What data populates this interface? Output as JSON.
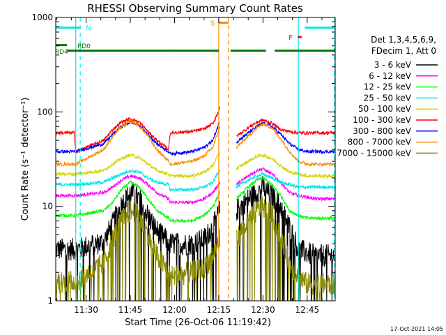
{
  "chart_data": {
    "type": "line",
    "title": "RHESSI Observing Summary Count Rates",
    "xlabel": "Start Time (26-Oct-06 11:19:42)",
    "ylabel": "Count Rate (s⁻¹ detector⁻¹)",
    "y_scale": "log",
    "ylim": [
      1,
      1000
    ],
    "x_unit": "minutes of day (UT)",
    "xlim": [
      679.7,
      774.5
    ],
    "x_ticks": [
      {
        "minute": 690,
        "label": "11:30"
      },
      {
        "minute": 705,
        "label": "11:45"
      },
      {
        "minute": 720,
        "label": "12:00"
      },
      {
        "minute": 735,
        "label": "12:15"
      },
      {
        "minute": 750,
        "label": "12:30"
      },
      {
        "minute": 765,
        "label": "12:45"
      }
    ],
    "y_ticks": [
      {
        "value": 1,
        "label": "1"
      },
      {
        "value": 10,
        "label": "10"
      },
      {
        "value": 100,
        "label": "100"
      },
      {
        "value": 1000,
        "label": "1000"
      }
    ],
    "legend_header": [
      "Det 1,3,4,5,6,9,",
      "FDecim 1, Att 0"
    ],
    "legend_position": "right",
    "series": [
      {
        "name": "3 - 6 keV",
        "color": "#000000",
        "x": [
          679.7,
          686,
          686.5,
          696,
          699,
          702,
          705,
          708,
          711,
          714,
          718,
          718.5,
          726,
          730,
          733,
          735.4,
          741,
          745,
          748,
          750,
          753,
          756,
          759,
          762,
          765,
          768,
          774.5
        ],
        "y": [
          3.5,
          3.5,
          3.5,
          4.2,
          6.5,
          10.5,
          14,
          12,
          8,
          5.5,
          4.2,
          4,
          4,
          4.5,
          6,
          9,
          9,
          12,
          14,
          16,
          13,
          10,
          6,
          3.5,
          3.2,
          3.0,
          3.0
        ]
      },
      {
        "name": "6 - 12 keV",
        "color": "#ff00ff",
        "x": [
          679.7,
          686,
          686.5,
          696,
          699,
          702,
          705,
          708,
          711,
          714,
          718,
          718.5,
          726,
          730,
          733,
          735.4,
          741,
          745,
          748,
          750,
          753,
          756,
          759,
          762,
          765,
          768,
          774.5
        ],
        "y": [
          13,
          13,
          13,
          14,
          16,
          19,
          21,
          20,
          17,
          14,
          12,
          11,
          11,
          12,
          14,
          18,
          17,
          21,
          24,
          25,
          22,
          18,
          14,
          13,
          12.5,
          12,
          12
        ]
      },
      {
        "name": "12 - 25 keV",
        "color": "#00ff00",
        "x": [
          679.7,
          686,
          686.5,
          696,
          699,
          702,
          705,
          708,
          711,
          714,
          718,
          718.5,
          726,
          730,
          733,
          735.4,
          741,
          745,
          748,
          750,
          753,
          756,
          759,
          762,
          765,
          768,
          774.5
        ],
        "y": [
          8,
          8,
          8,
          9,
          11,
          15,
          18,
          16,
          12,
          9,
          7.5,
          7,
          7,
          8,
          10,
          14,
          12,
          16,
          19,
          20,
          17,
          13,
          9,
          8,
          7.5,
          7.5,
          7.5
        ]
      },
      {
        "name": "25 - 50 keV",
        "color": "#00e8e8",
        "x": [
          679.7,
          686,
          686.5,
          696,
          699,
          702,
          705,
          708,
          711,
          714,
          718,
          718.5,
          726,
          730,
          733,
          735.4,
          741,
          745,
          748,
          750,
          753,
          756,
          759,
          762,
          765,
          768,
          774.5
        ],
        "y": [
          17,
          17,
          17,
          18,
          20,
          22,
          24,
          23,
          20,
          18,
          17,
          15,
          15,
          16,
          18,
          25,
          16,
          19,
          21,
          22,
          20,
          18,
          17,
          16,
          16,
          16,
          16
        ]
      },
      {
        "name": "50 - 100 keV",
        "color": "#d4d400",
        "x": [
          679.7,
          686,
          686.5,
          696,
          699,
          702,
          705,
          708,
          711,
          714,
          718,
          718.5,
          726,
          730,
          733,
          735.4,
          741,
          745,
          748,
          750,
          753,
          756,
          759,
          762,
          765,
          768,
          774.5
        ],
        "y": [
          22,
          22,
          22,
          24,
          28,
          32,
          35,
          33,
          28,
          24,
          22,
          21,
          21,
          23,
          27,
          38,
          25,
          30,
          34,
          35,
          32,
          27,
          23,
          22,
          21,
          21,
          21
        ]
      },
      {
        "name": "100 - 300 keV",
        "color": "#ff0000",
        "x": [
          679.7,
          686,
          686.5,
          696,
          699,
          702,
          705,
          708,
          711,
          714,
          718,
          718.5,
          726,
          730,
          733,
          735.4,
          741,
          745,
          748,
          750,
          753,
          756,
          759,
          762,
          765,
          768,
          774.5
        ],
        "y": [
          60,
          60,
          38,
          50,
          65,
          78,
          85,
          78,
          62,
          50,
          40,
          60,
          62,
          66,
          75,
          110,
          55,
          68,
          78,
          82,
          76,
          65,
          62,
          60,
          60,
          60,
          60
        ]
      },
      {
        "name": "300 - 800 keV",
        "color": "#0000ff",
        "x": [
          679.7,
          686,
          686.5,
          696,
          699,
          702,
          705,
          708,
          711,
          714,
          718,
          718.5,
          726,
          730,
          733,
          735.4,
          741,
          745,
          748,
          750,
          753,
          756,
          759,
          762,
          765,
          768,
          774.5
        ],
        "y": [
          38,
          38,
          38,
          46,
          58,
          70,
          78,
          72,
          58,
          46,
          38,
          36,
          38,
          42,
          50,
          80,
          48,
          60,
          70,
          76,
          70,
          58,
          46,
          40,
          38,
          38,
          38
        ]
      },
      {
        "name": "800 - 7000 keV",
        "color": "#ff8c00",
        "x": [
          679.7,
          686,
          686.5,
          696,
          699,
          702,
          705,
          708,
          711,
          714,
          718,
          718.5,
          726,
          730,
          733,
          735.4,
          741,
          745,
          748,
          750,
          753,
          756,
          759,
          762,
          765,
          768,
          774.5
        ],
        "y": [
          28,
          28,
          28,
          40,
          55,
          70,
          80,
          72,
          55,
          40,
          30,
          28,
          30,
          34,
          42,
          70,
          42,
          55,
          68,
          75,
          68,
          52,
          38,
          30,
          28,
          28,
          28
        ]
      },
      {
        "name": "7000 - 15000 keV",
        "color": "#8b8b00",
        "x": [
          679.7,
          686,
          686.5,
          696,
          699,
          702,
          705,
          708,
          711,
          714,
          718,
          718.5,
          726,
          730,
          733,
          735.4,
          741,
          745,
          748,
          750,
          753,
          756,
          759,
          762,
          765,
          768,
          774.5
        ],
        "y": [
          1.6,
          1.6,
          1.6,
          2.5,
          4.5,
          7,
          9,
          8,
          5,
          3,
          2,
          1.8,
          2,
          2.2,
          3,
          4.5,
          4.5,
          7,
          9,
          10,
          8,
          5,
          2.5,
          1.8,
          1.5,
          1.5,
          1.5
        ]
      }
    ],
    "annotations": [
      {
        "label": "N",
        "color": "#00e8e8",
        "x": [
          679.7,
          687.8
        ],
        "level": 780
      },
      {
        "label": "N",
        "color": "#00e8e8",
        "x": [
          764.2,
          774.5
        ],
        "level": 780
      },
      {
        "label": "S",
        "color": "#ff8c00",
        "x": [
          735,
          738.3
        ],
        "level": 880
      },
      {
        "label": "F",
        "color": "#ff0000",
        "x": [
          761.8,
          763.1
        ],
        "level": 620
      },
      {
        "label": "RD0",
        "color": "#007700",
        "x": [
          679.7,
          719.5
        ],
        "level": 510
      },
      {
        "label": "RD4",
        "color": "#007700",
        "x": [
          679.7,
          719.5
        ],
        "level": 445
      }
    ],
    "eclipse_lines": [
      {
        "minute": 686.5,
        "color": "#00e8e8",
        "style": "solid"
      },
      {
        "minute": 762.0,
        "color": "#00e8e8",
        "style": "solid"
      },
      {
        "minute": 688.0,
        "color": "#00e8e8",
        "style": "dashed"
      },
      {
        "minute": 774.2,
        "color": "#00e8e8",
        "style": "dashed"
      },
      {
        "minute": 735.0,
        "color": "#ff8c00",
        "style": "solid"
      },
      {
        "minute": 738.3,
        "color": "#ff8c00",
        "style": "dashed"
      }
    ],
    "annotation_bars": [
      {
        "color": "#007700",
        "level": 510,
        "segments": [
          [
            679.7,
            683.5
          ]
        ]
      },
      {
        "color": "#007700",
        "level": 445,
        "segments": [
          [
            683.5,
            719.5
          ],
          [
            719.5,
            735
          ],
          [
            739,
            751
          ],
          [
            754,
            774.5
          ]
        ]
      }
    ]
  },
  "footer": {
    "timestamp": "17-Oct-2021 14:05"
  }
}
